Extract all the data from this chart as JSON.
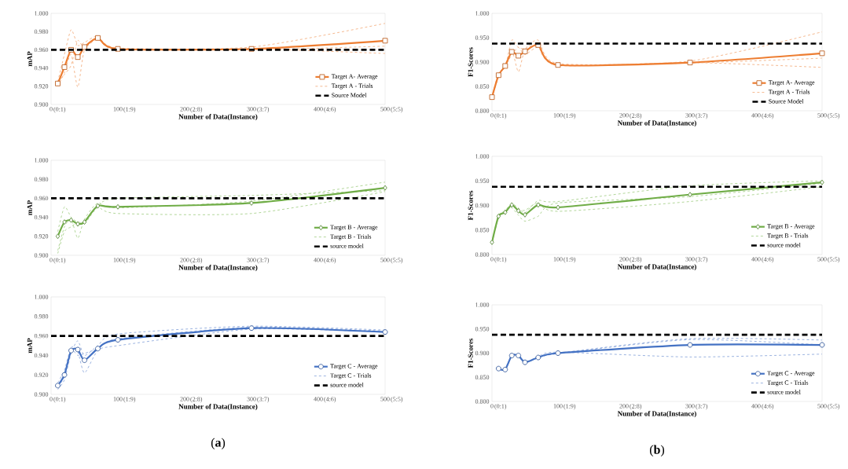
{
  "chart_data": [
    {
      "type": "line",
      "ylabel": "mAP",
      "xlabel": "Number of Data(Instance)",
      "xlim": [
        0,
        500
      ],
      "xticks": [
        0,
        100,
        200,
        300,
        400,
        500
      ],
      "ylim": [
        0.9,
        1.0
      ],
      "yticks": [
        {
          "value": 0.9,
          "label": "0.900"
        },
        {
          "value": 0.92,
          "label": "0.920"
        },
        {
          "value": 0.94,
          "label": "0.940"
        },
        {
          "value": 0.96,
          "label": "0.960"
        },
        {
          "value": 0.98,
          "label": "0.980"
        },
        {
          "value": 1.0,
          "label": "1.000"
        }
      ],
      "legend": "bottom right",
      "x": [
        10,
        20,
        30,
        40,
        50,
        70,
        100,
        300,
        500
      ],
      "series": [
        {
          "name": "Target A- Average",
          "color": "#ed7d31",
          "marker": "square",
          "line_style": "solid",
          "values": [
            0.923,
            0.941,
            0.96,
            0.952,
            0.963,
            0.973,
            0.961,
            0.961,
            0.97
          ]
        },
        {
          "name": "Target A - Trials",
          "color": "#f4b183",
          "marker": "none",
          "line_style": "dashed",
          "values": [
            0.925,
            0.955,
            0.982,
            0.965,
            0.968,
            0.975,
            0.962,
            0.963,
            0.989
          ]
        },
        {
          "color": "#f4b183",
          "marker": "none",
          "line_style": "dashed",
          "values": [
            0.92,
            0.935,
            0.955,
            0.919,
            0.96,
            0.972,
            0.96,
            0.961,
            0.956
          ]
        },
        {
          "color": "#f4b183",
          "marker": "none",
          "line_style": "dashed",
          "values": [
            0.924,
            0.933,
            0.943,
            0.97,
            0.962,
            0.972,
            0.961,
            0.96,
            0.964
          ]
        }
      ],
      "ref_lines": [
        {
          "axis": "y",
          "value": 0.96,
          "label": "Source Model",
          "color": "#000000",
          "line_style": "dashed"
        }
      ],
      "annotations": [
        "(0:1)",
        "(1:9)",
        "(2:8)",
        "(3:7)",
        "(4:6)",
        "(5:5)"
      ]
    },
    {
      "type": "line",
      "ylabel": "F1-Scores",
      "xlabel": "Number of Data(Instance)",
      "xlim": [
        0,
        500
      ],
      "xticks": [
        0,
        100,
        200,
        300,
        400,
        500
      ],
      "ylim": [
        0.8,
        1.0
      ],
      "yticks": [
        {
          "value": 0.8,
          "label": "0.800"
        },
        {
          "value": 0.85,
          "label": "0.850"
        },
        {
          "value": 0.9,
          "label": "0.900"
        },
        {
          "value": 0.95,
          "label": "0.950"
        },
        {
          "value": 1.0,
          "label": "1.000"
        }
      ],
      "legend": "bottom right",
      "x": [
        0,
        10,
        20,
        30,
        40,
        50,
        70,
        100,
        300,
        500
      ],
      "series": [
        {
          "name": "Target A- Average",
          "color": "#ed7d31",
          "marker": "square",
          "line_style": "solid",
          "values": [
            0.828,
            0.873,
            0.892,
            0.921,
            0.913,
            0.922,
            0.935,
            0.894,
            0.899,
            0.918
          ]
        },
        {
          "name": "Target A - Trials",
          "color": "#f4b183",
          "marker": "none",
          "line_style": "dashed",
          "values": [
            0.828,
            0.87,
            0.895,
            0.925,
            0.88,
            0.925,
            0.935,
            0.895,
            0.898,
            0.908
          ]
        },
        {
          "color": "#f4b183",
          "marker": "none",
          "line_style": "dashed",
          "values": [
            0.828,
            0.878,
            0.89,
            0.945,
            0.93,
            0.928,
            0.945,
            0.897,
            0.902,
            0.962
          ]
        },
        {
          "color": "#f4b183",
          "marker": "none",
          "line_style": "dashed",
          "values": [
            0.828,
            0.872,
            0.892,
            0.915,
            0.93,
            0.915,
            0.93,
            0.893,
            0.899,
            0.889
          ]
        }
      ],
      "ref_lines": [
        {
          "axis": "y",
          "value": 0.938,
          "label": "Source Model",
          "color": "#000000",
          "line_style": "dashed"
        }
      ],
      "annotations": [
        "(0:1)",
        "(1:9)",
        "(2:8)",
        "(3:7)",
        "(4:6)",
        "(5:5)"
      ]
    },
    {
      "type": "line",
      "ylabel": "mAP",
      "xlabel": "Number of Data(Instance)",
      "xlim": [
        0,
        500
      ],
      "xticks": [
        0,
        100,
        200,
        300,
        400,
        500
      ],
      "ylim": [
        0.9,
        1.0
      ],
      "yticks": [
        {
          "value": 0.9,
          "label": "0.900"
        },
        {
          "value": 0.92,
          "label": "0.920"
        },
        {
          "value": 0.94,
          "label": "0.940"
        },
        {
          "value": 0.96,
          "label": "0.960"
        },
        {
          "value": 0.98,
          "label": "0.980"
        },
        {
          "value": 1.0,
          "label": "1.000"
        }
      ],
      "legend": "bottom right",
      "x": [
        10,
        20,
        30,
        40,
        50,
        70,
        100,
        300,
        500
      ],
      "series": [
        {
          "name": "Target B - Average",
          "color": "#70ad47",
          "marker": "diamond",
          "line_style": "solid",
          "values": [
            0.92,
            0.935,
            0.937,
            0.933,
            0.935,
            0.952,
            0.951,
            0.955,
            0.971
          ]
        },
        {
          "name": "Target B - Trials",
          "color": "#a9d18e",
          "marker": "none",
          "line_style": "dashed",
          "values": [
            0.925,
            0.951,
            0.94,
            0.935,
            0.936,
            0.952,
            0.96,
            0.963,
            0.968
          ]
        },
        {
          "color": "#a9d18e",
          "marker": "none",
          "line_style": "dashed",
          "values": [
            0.905,
            0.93,
            0.938,
            0.918,
            0.938,
            0.955,
            0.95,
            0.957,
            0.977
          ]
        },
        {
          "color": "#a9d18e",
          "marker": "none",
          "line_style": "dashed",
          "values": [
            0.902,
            0.925,
            0.93,
            0.935,
            0.933,
            0.95,
            0.944,
            0.944,
            0.967
          ]
        }
      ],
      "ref_lines": [
        {
          "axis": "y",
          "value": 0.96,
          "label": "source model",
          "color": "#000000",
          "line_style": "dashed"
        }
      ],
      "annotations": [
        "(0:1)",
        "(1:9)",
        "(2:8)",
        "(3:7)",
        "(4:6)",
        "(5:5)"
      ]
    },
    {
      "type": "line",
      "ylabel": "F1-Scores",
      "xlabel": "Number of Data(Instance)",
      "xlim": [
        0,
        500
      ],
      "xticks": [
        0,
        100,
        200,
        300,
        400,
        500
      ],
      "ylim": [
        0.8,
        1.0
      ],
      "yticks": [
        {
          "value": 0.8,
          "label": "0.800"
        },
        {
          "value": 0.85,
          "label": "0.850"
        },
        {
          "value": 0.9,
          "label": "0.900"
        },
        {
          "value": 0.95,
          "label": "0.950"
        },
        {
          "value": 1.0,
          "label": "1.000"
        }
      ],
      "legend": "bottom right",
      "x": [
        0,
        10,
        20,
        30,
        40,
        50,
        70,
        100,
        300,
        500
      ],
      "series": [
        {
          "name": "Target B - Average",
          "color": "#70ad47",
          "marker": "diamond",
          "line_style": "solid",
          "values": [
            0.825,
            0.878,
            0.886,
            0.901,
            0.889,
            0.881,
            0.901,
            0.896,
            0.922,
            0.947
          ]
        },
        {
          "name": "Target B - Trials",
          "color": "#a9d18e",
          "marker": "none",
          "line_style": "dashed",
          "values": [
            0.825,
            0.88,
            0.888,
            0.895,
            0.88,
            0.868,
            0.878,
            0.905,
            0.918,
            0.945
          ]
        },
        {
          "color": "#a9d18e",
          "marker": "none",
          "line_style": "dashed",
          "values": [
            0.825,
            0.875,
            0.89,
            0.903,
            0.895,
            0.885,
            0.91,
            0.908,
            0.94,
            0.95
          ]
        },
        {
          "color": "#a9d18e",
          "marker": "none",
          "line_style": "dashed",
          "values": [
            0.825,
            0.878,
            0.885,
            0.9,
            0.892,
            0.89,
            0.905,
            0.888,
            0.908,
            0.938
          ]
        }
      ],
      "ref_lines": [
        {
          "axis": "y",
          "value": 0.938,
          "label": "source model",
          "color": "#000000",
          "line_style": "dashed"
        }
      ],
      "annotations": [
        "(0:1)",
        "(1:9)",
        "(2:8)",
        "(3:7)",
        "(4:6)",
        "(5:5)"
      ]
    },
    {
      "type": "line",
      "ylabel": "mAP",
      "xlabel": "Number of Data(Instance)",
      "xlim": [
        0,
        500
      ],
      "xticks": [
        0,
        100,
        200,
        300,
        400,
        500
      ],
      "ylim": [
        0.9,
        1.0
      ],
      "yticks": [
        {
          "value": 0.9,
          "label": "0.900"
        },
        {
          "value": 0.92,
          "label": "0.920"
        },
        {
          "value": 0.94,
          "label": "0.940"
        },
        {
          "value": 0.96,
          "label": "0.960"
        },
        {
          "value": 0.98,
          "label": "0.980"
        },
        {
          "value": 1.0,
          "label": "1.000"
        }
      ],
      "legend": "bottom right",
      "x": [
        10,
        20,
        30,
        40,
        50,
        70,
        100,
        300,
        500
      ],
      "series": [
        {
          "name": "Target C - Average",
          "color": "#4472c4",
          "marker": "circle",
          "line_style": "solid",
          "values": [
            0.909,
            0.92,
            0.945,
            0.946,
            0.935,
            0.947,
            0.956,
            0.968,
            0.964
          ]
        },
        {
          "name": "Target C - Trials",
          "color": "#8faadc",
          "marker": "none",
          "line_style": "dashed",
          "values": [
            0.905,
            0.915,
            0.942,
            0.955,
            0.94,
            0.95,
            0.962,
            0.97,
            0.966
          ]
        },
        {
          "color": "#8faadc",
          "marker": "none",
          "line_style": "dashed",
          "values": [
            0.912,
            0.925,
            0.948,
            0.944,
            0.922,
            0.945,
            0.95,
            0.967,
            0.964
          ]
        },
        {
          "color": "#8faadc",
          "marker": "none",
          "line_style": "dashed",
          "values": [
            0.908,
            0.918,
            0.945,
            0.94,
            0.942,
            0.947,
            0.957,
            0.969,
            0.965
          ]
        }
      ],
      "ref_lines": [
        {
          "axis": "y",
          "value": 0.96,
          "label": "source model",
          "color": "#000000",
          "line_style": "dashed"
        }
      ],
      "annotations": [
        "(0:1)",
        "(1:9)",
        "(2:8)",
        "(3:7)",
        "(4:6)",
        "(5:5)",
        "(**a**)"
      ]
    },
    {
      "type": "line",
      "ylabel": "F1-Scores",
      "xlabel": "Number of Data(Instance)",
      "xlim": [
        0,
        500
      ],
      "xticks": [
        0,
        100,
        200,
        300,
        400,
        500
      ],
      "ylim": [
        0.8,
        1.0
      ],
      "yticks": [
        {
          "value": 0.8,
          "label": "0.800"
        },
        {
          "value": 0.85,
          "label": "0.850"
        },
        {
          "value": 0.9,
          "label": "0.900"
        },
        {
          "value": 0.95,
          "label": "0.950"
        },
        {
          "value": 1.0,
          "label": "1.000"
        }
      ],
      "legend": "bottom right",
      "x": [
        10,
        20,
        30,
        40,
        50,
        70,
        100,
        300,
        500
      ],
      "series": [
        {
          "name": "Target C - Average",
          "color": "#4472c4",
          "marker": "circle",
          "line_style": "solid",
          "values": [
            0.868,
            0.866,
            0.895,
            0.895,
            0.881,
            0.891,
            0.9,
            0.917,
            0.917
          ]
        },
        {
          "name": "Target C - Trials",
          "color": "#8faadc",
          "marker": "none",
          "line_style": "dashed",
          "values": [
            0.868,
            0.87,
            0.893,
            0.895,
            0.882,
            0.89,
            0.9,
            0.93,
            0.927
          ]
        },
        {
          "color": "#8faadc",
          "marker": "none",
          "line_style": "dashed",
          "values": [
            0.866,
            0.866,
            0.897,
            0.893,
            0.88,
            0.893,
            0.902,
            0.892,
            0.898
          ]
        },
        {
          "color": "#8faadc",
          "marker": "none",
          "line_style": "dashed",
          "values": [
            0.87,
            0.864,
            0.895,
            0.897,
            0.881,
            0.89,
            0.899,
            0.928,
            0.917
          ]
        }
      ],
      "ref_lines": [
        {
          "axis": "y",
          "value": 0.938,
          "label": "source model",
          "color": "#000000",
          "line_style": "dashed"
        }
      ],
      "annotations": [
        "(0:1)",
        "(1:9)",
        "(2:8)",
        "(3:7)",
        "(4:6)",
        "(5:5)",
        "(**b**)"
      ]
    }
  ]
}
